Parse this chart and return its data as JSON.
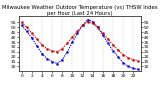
{
  "title": "Milwaukee Weather Outdoor Temperature (vs) THSW Index per Hour (Last 24 Hours)",
  "hours": [
    0,
    1,
    2,
    3,
    4,
    5,
    6,
    7,
    8,
    9,
    10,
    11,
    12,
    13,
    14,
    15,
    16,
    17,
    18,
    19,
    20,
    21,
    22,
    23
  ],
  "temp": [
    55,
    50,
    44,
    38,
    32,
    28,
    26,
    25,
    28,
    34,
    40,
    46,
    52,
    56,
    54,
    50,
    44,
    38,
    32,
    27,
    22,
    19,
    17,
    16
  ],
  "thsw": [
    52,
    46,
    39,
    31,
    23,
    18,
    15,
    13,
    17,
    25,
    35,
    44,
    52,
    58,
    56,
    50,
    42,
    34,
    26,
    20,
    14,
    10,
    8,
    7
  ],
  "temp_color": "#cc0000",
  "thsw_color": "#0000cc",
  "background": "#ffffff",
  "grid_color": "#aaaaaa",
  "ylim": [
    5,
    62
  ],
  "ytick_labels": [
    "55",
    "50",
    "45",
    "40",
    "35",
    "30",
    "25",
    "20",
    "15",
    "10"
  ],
  "ytick_values": [
    55,
    50,
    45,
    40,
    35,
    30,
    25,
    20,
    15,
    10
  ],
  "xtick_positions": [
    0,
    2,
    4,
    6,
    8,
    10,
    12,
    14,
    16,
    18,
    20,
    22
  ],
  "xtick_labels": [
    "0",
    "2",
    "4",
    "6",
    "8",
    "10",
    "12",
    "14",
    "16",
    "18",
    "20",
    "22"
  ],
  "title_fontsize": 3.8,
  "tick_fontsize": 3.2,
  "line_width": 0.7,
  "marker_size": 1.2
}
